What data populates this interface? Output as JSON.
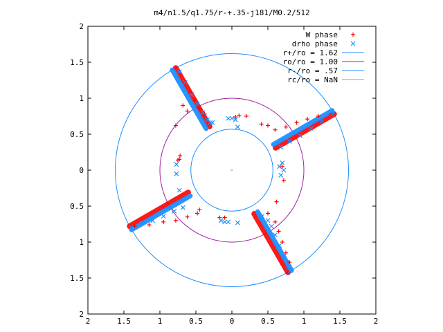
{
  "chart_data": {
    "type": "scatter",
    "title": "m4/n1.5/q1.75/r-+.35-j181/M0.2/512",
    "xlabel": "",
    "ylabel": "",
    "xlim": [
      -2,
      2
    ],
    "ylim": [
      -2,
      2
    ],
    "x_ticks": [
      "2",
      "1.5",
      "1",
      "0.5",
      "0",
      "0.5",
      "1",
      "1.5",
      "2"
    ],
    "y_ticks": [
      "2",
      "1.5",
      "1",
      "0.5",
      "0",
      "0.5",
      "1",
      "1.5",
      "2"
    ],
    "grid": false,
    "legend_position": "top-right",
    "legend": [
      {
        "label": "W phase",
        "kind": "point",
        "color": "#ff0000",
        "symbol": "+"
      },
      {
        "label": "drho phase",
        "kind": "point",
        "color": "#1e90ff",
        "symbol": "x"
      },
      {
        "label": "r+/ro = 1.62",
        "kind": "line",
        "color": "#1e90ff"
      },
      {
        "label": "ro/ro = 1.00",
        "kind": "line",
        "color": "#a020a0"
      },
      {
        "label": "r-/ro = .57",
        "kind": "line",
        "color": "#1e90ff"
      },
      {
        "label": "rc/ro = NaN",
        "kind": "line",
        "color": "#40c0c0"
      }
    ],
    "circles": [
      {
        "name": "r+/ro",
        "radius": 1.62,
        "color": "#1e90ff"
      },
      {
        "name": "ro/ro",
        "radius": 1.0,
        "color": "#a020a0"
      },
      {
        "name": "r-/ro",
        "radius": 0.57,
        "color": "#1e90ff"
      }
    ],
    "arms": [
      {
        "r1": 0.68,
        "r2": 1.62,
        "angle_deg": 120
      },
      {
        "r1": 0.68,
        "r2": 1.62,
        "angle_deg": 30
      },
      {
        "r1": 0.68,
        "r2": 1.62,
        "angle_deg": -60
      },
      {
        "r1": 0.68,
        "r2": 1.62,
        "angle_deg": -150
      }
    ],
    "series": [
      {
        "name": "W phase",
        "color": "#ff0000",
        "points": [
          [
            -0.72,
            1.35
          ],
          [
            -0.65,
            1.22
          ],
          [
            -0.58,
            1.08
          ],
          [
            -0.52,
            0.97
          ],
          [
            -0.45,
            0.86
          ],
          [
            -0.38,
            0.78
          ],
          [
            -0.68,
            0.9
          ],
          [
            -0.62,
            0.82
          ],
          [
            -0.78,
            0.62
          ],
          [
            -0.72,
            0.2
          ],
          [
            -0.75,
            0.14
          ],
          [
            0.05,
            0.74
          ],
          [
            0.1,
            0.76
          ],
          [
            0.2,
            0.75
          ],
          [
            0.41,
            0.64
          ],
          [
            0.5,
            0.62
          ],
          [
            0.6,
            0.56
          ],
          [
            0.75,
            0.6
          ],
          [
            0.9,
            0.66
          ],
          [
            1.05,
            0.71
          ],
          [
            1.2,
            0.75
          ],
          [
            1.38,
            0.78
          ],
          [
            0.7,
            0.05
          ],
          [
            0.72,
            -0.14
          ],
          [
            0.62,
            -0.44
          ],
          [
            0.5,
            -0.6
          ],
          [
            0.6,
            -0.72
          ],
          [
            0.65,
            -0.85
          ],
          [
            0.7,
            -1.0
          ],
          [
            0.75,
            -1.15
          ],
          [
            0.8,
            -1.28
          ],
          [
            0.78,
            -1.42
          ],
          [
            -0.45,
            -0.55
          ],
          [
            -0.48,
            -0.6
          ],
          [
            -0.62,
            -0.65
          ],
          [
            -0.78,
            -0.7
          ],
          [
            -0.95,
            -0.72
          ],
          [
            -1.15,
            -0.76
          ],
          [
            -1.35,
            -0.78
          ],
          [
            -0.1,
            -0.66
          ],
          [
            -0.17,
            -0.66
          ],
          [
            -0.73,
            0.15
          ]
        ]
      },
      {
        "name": "drho phase",
        "color": "#1e90ff",
        "points": [
          [
            -0.73,
            1.37
          ],
          [
            -0.65,
            1.22
          ],
          [
            -0.56,
            1.05
          ],
          [
            -0.48,
            0.92
          ],
          [
            -0.4,
            0.8
          ],
          [
            -0.34,
            0.7
          ],
          [
            -0.3,
            0.66
          ],
          [
            -0.27,
            0.66
          ],
          [
            -0.05,
            0.72
          ],
          [
            0.0,
            0.72
          ],
          [
            0.05,
            0.7
          ],
          [
            0.08,
            0.6
          ],
          [
            0.68,
            0.32
          ],
          [
            0.8,
            0.4
          ],
          [
            0.95,
            0.48
          ],
          [
            1.1,
            0.58
          ],
          [
            1.25,
            0.68
          ],
          [
            1.4,
            0.78
          ],
          [
            0.7,
            0.1
          ],
          [
            0.72,
            0.0
          ],
          [
            0.68,
            -0.07
          ],
          [
            0.42,
            -0.64
          ],
          [
            0.5,
            -0.7
          ],
          [
            0.55,
            -0.78
          ],
          [
            0.6,
            -0.9
          ],
          [
            0.66,
            -1.05
          ],
          [
            0.72,
            -1.2
          ],
          [
            0.78,
            -1.35
          ],
          [
            0.81,
            -1.4
          ],
          [
            -0.68,
            -0.52
          ],
          [
            -0.8,
            -0.57
          ],
          [
            -0.95,
            -0.64
          ],
          [
            -1.1,
            -0.7
          ],
          [
            -1.25,
            -0.74
          ],
          [
            -1.4,
            -0.8
          ],
          [
            -0.15,
            -0.7
          ],
          [
            -0.1,
            -0.72
          ],
          [
            -0.05,
            -0.72
          ],
          [
            0.08,
            -0.73
          ],
          [
            -0.73,
            -0.28
          ],
          [
            -0.77,
            -0.05
          ],
          [
            -0.77,
            0.08
          ],
          [
            0.38,
            -0.65
          ],
          [
            0.66,
            0.05
          ]
        ]
      }
    ]
  }
}
